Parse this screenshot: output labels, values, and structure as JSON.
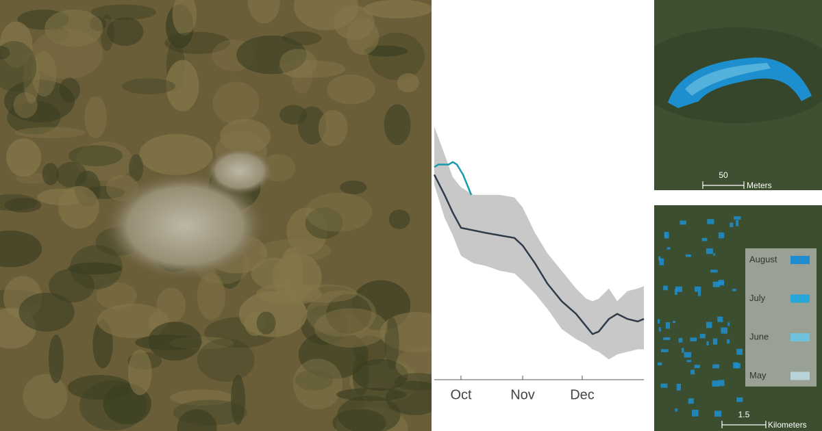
{
  "chart_data": {
    "type": "line",
    "xlim": [
      0,
      102
    ],
    "ylim": [
      0,
      100
    ],
    "xticks": [
      {
        "value": 13,
        "label": "Oct"
      },
      {
        "value": 43,
        "label": "Nov"
      },
      {
        "value": 72,
        "label": "Dec"
      }
    ],
    "x": [
      0,
      5,
      9,
      13,
      19,
      25,
      32,
      39,
      43,
      49,
      55,
      62,
      69,
      74,
      77,
      80,
      85,
      89,
      94,
      99,
      102
    ],
    "band": {
      "color": "#c8c8c8",
      "upper": [
        100,
        89,
        80,
        76,
        73,
        73,
        73,
        72,
        68,
        58,
        50,
        43,
        36,
        32,
        31,
        32,
        36,
        31,
        35,
        36,
        37
      ],
      "lower": [
        77,
        64,
        57,
        49,
        46,
        45,
        43,
        42,
        39,
        34,
        28,
        20,
        16,
        14,
        12,
        11,
        8,
        10,
        11,
        12,
        12
      ]
    },
    "series": [
      {
        "color": "#2f3b48",
        "x": [
          0,
          5,
          9,
          13,
          19,
          25,
          32,
          39,
          43,
          49,
          55,
          62,
          69,
          74,
          77,
          80,
          85,
          89,
          94,
          99,
          102
        ],
        "values": [
          81,
          73,
          66,
          60,
          59,
          58,
          57,
          56,
          53,
          46,
          38,
          31,
          26,
          21,
          18,
          19,
          24,
          26,
          24,
          23,
          24
        ]
      },
      {
        "color": "#1a9aae",
        "x": [
          0,
          2,
          5,
          7,
          9,
          11,
          14,
          16,
          18
        ],
        "values": [
          84,
          85,
          85,
          85,
          86,
          85,
          81,
          77,
          73
        ]
      }
    ]
  },
  "insets": [
    {
      "scale_value": "50",
      "scale_unit": "Meters"
    },
    {
      "scale_value": "1.5",
      "scale_unit": "Kilometers",
      "legend": [
        {
          "label": "August",
          "color": "#1f8ed0"
        },
        {
          "label": "July",
          "color": "#27a6d8"
        },
        {
          "label": "June",
          "color": "#70c2dc"
        },
        {
          "label": "May",
          "color": "#b9d2da"
        }
      ]
    }
  ]
}
